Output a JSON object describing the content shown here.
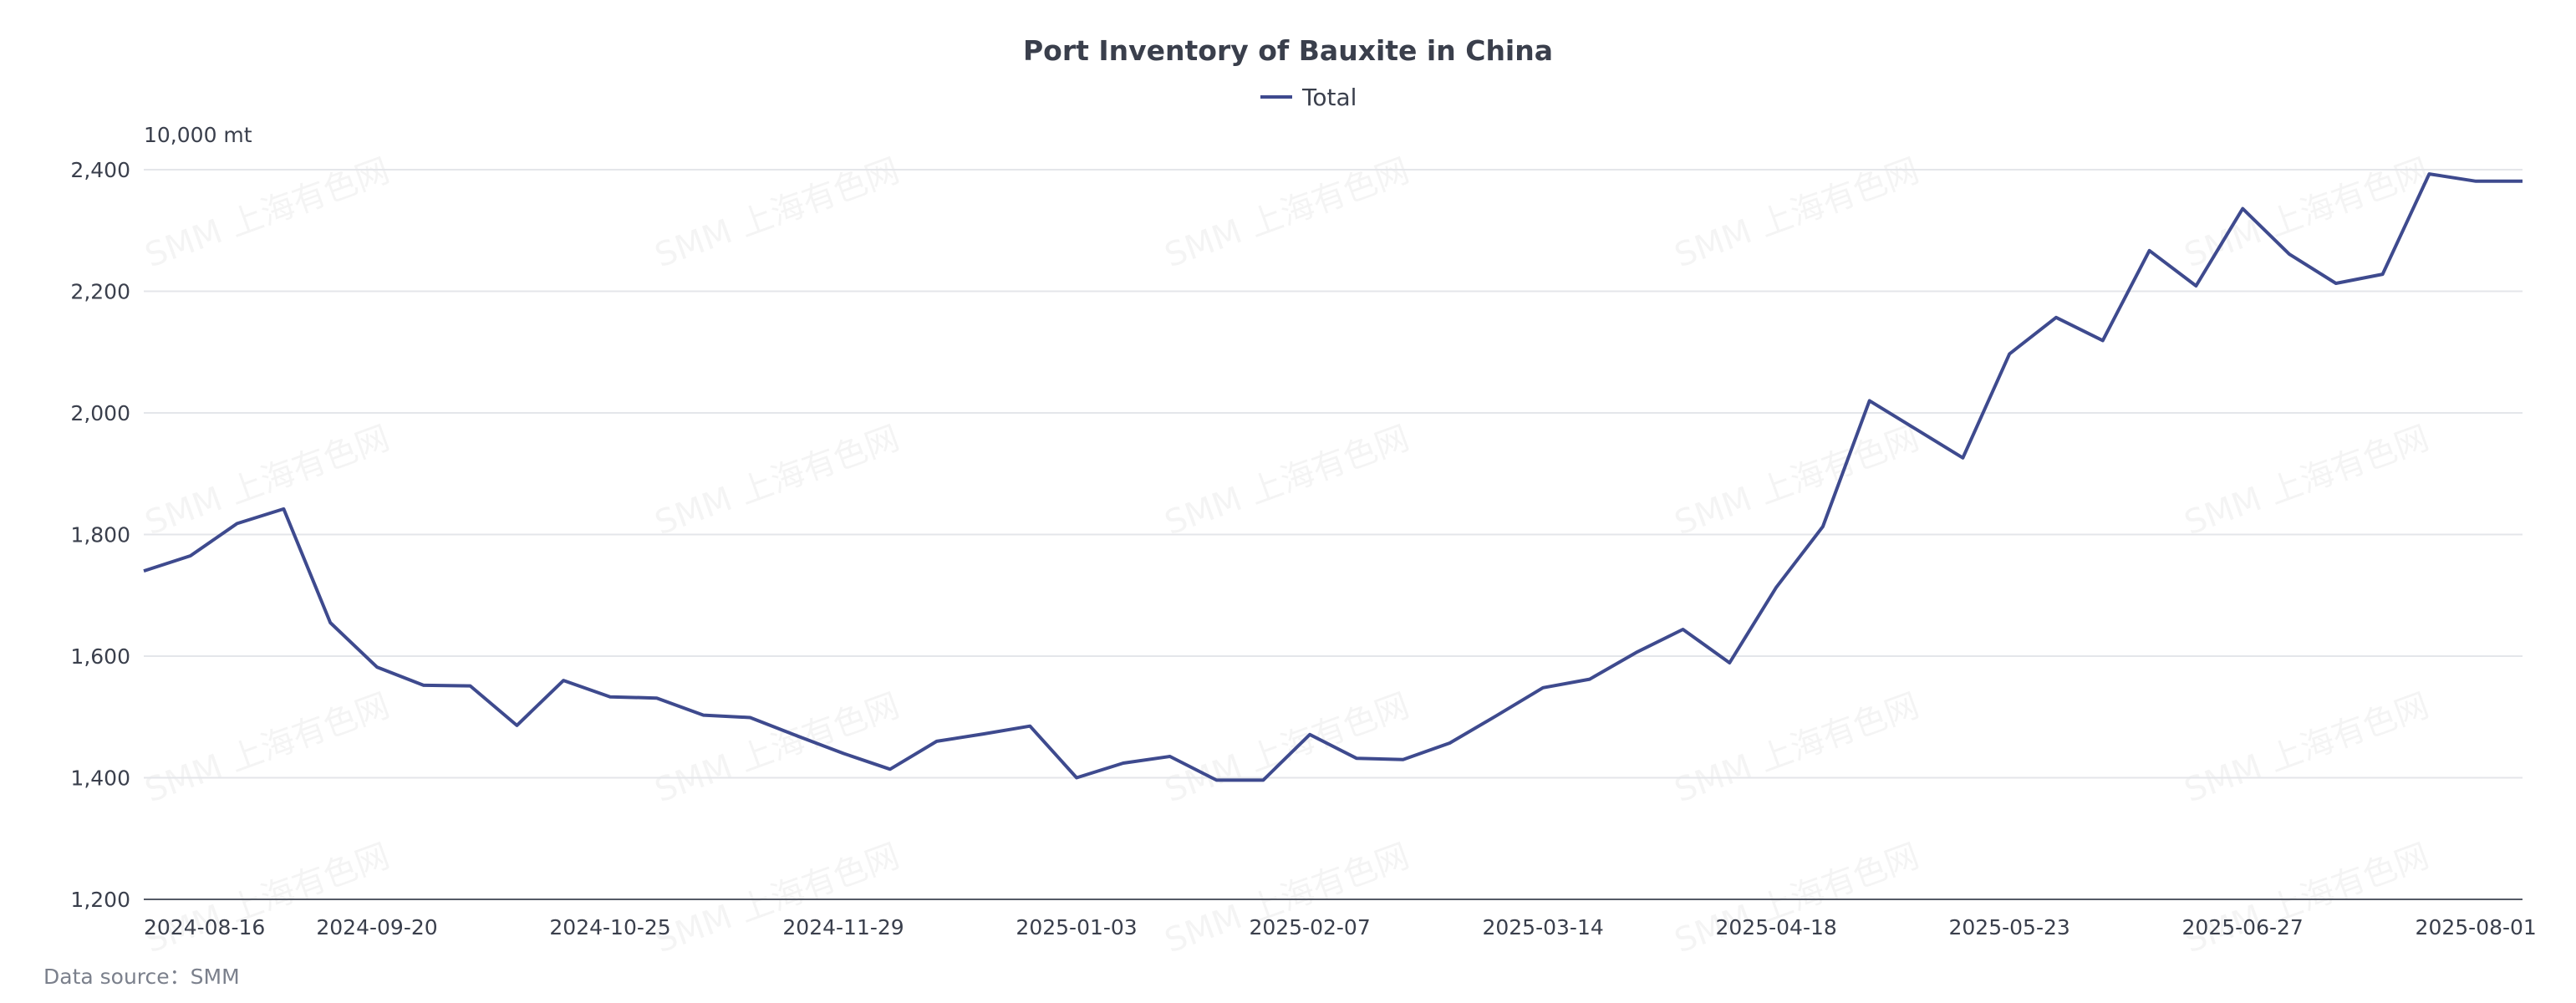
{
  "chart_data": {
    "type": "line",
    "title": "Port Inventory of Bauxite in China",
    "unit_label": "10,000 mt",
    "ylim": [
      1200,
      2400
    ],
    "yticks": [
      1200,
      1400,
      1600,
      1800,
      2000,
      2200,
      2400
    ],
    "ytick_labels": [
      "1,200",
      "1,400",
      "1,600",
      "1,800",
      "2,000",
      "2,200",
      "2,400"
    ],
    "x": [
      "2024-08-16",
      "2024-08-23",
      "2024-08-30",
      "2024-09-06",
      "2024-09-13",
      "2024-09-20",
      "2024-09-27",
      "2024-10-04",
      "2024-10-11",
      "2024-10-18",
      "2024-10-25",
      "2024-11-01",
      "2024-11-08",
      "2024-11-15",
      "2024-11-22",
      "2024-11-29",
      "2024-12-06",
      "2024-12-13",
      "2024-12-20",
      "2024-12-27",
      "2025-01-03",
      "2025-01-10",
      "2025-01-17",
      "2025-01-24",
      "2025-01-31",
      "2025-02-07",
      "2025-02-14",
      "2025-02-21",
      "2025-02-28",
      "2025-03-07",
      "2025-03-14",
      "2025-03-21",
      "2025-03-28",
      "2025-04-04",
      "2025-04-11",
      "2025-04-18",
      "2025-04-25",
      "2025-05-02",
      "2025-05-09",
      "2025-05-16",
      "2025-05-23",
      "2025-05-30",
      "2025-06-06",
      "2025-06-13",
      "2025-06-20",
      "2025-06-27",
      "2025-07-04",
      "2025-07-11",
      "2025-07-18",
      "2025-07-25",
      "2025-08-01",
      "2025-08-08"
    ],
    "xtick_labels": [
      "2024-08-16",
      "2024-09-20",
      "2024-10-25",
      "2024-11-29",
      "2025-01-03",
      "2025-02-07",
      "2025-03-14",
      "2025-04-18",
      "2025-05-23",
      "2025-06-27",
      "2025-08-01"
    ],
    "series": [
      {
        "name": "Total",
        "color": "#3e4a8e",
        "values": [
          1740,
          1765,
          1818,
          1842,
          1655,
          1582,
          1552,
          1551,
          1486,
          1560,
          1533,
          1531,
          1503,
          1499,
          1469,
          1440,
          1414,
          1460,
          1472,
          1485,
          1400,
          1424,
          1435,
          1396,
          1396,
          1471,
          1432,
          1430,
          1457,
          1502,
          1548,
          1562,
          1606,
          1644,
          1589,
          1713,
          1813,
          2020,
          1973,
          1926,
          2097,
          2157,
          2119,
          2267,
          2209,
          2336,
          2261,
          2213,
          2228,
          2393,
          2381,
          2381
        ]
      }
    ],
    "grid": true,
    "legend_position": "top-center"
  },
  "watermark_text": "SMM 上海有色网",
  "source": {
    "label": "Data source：SMM"
  }
}
